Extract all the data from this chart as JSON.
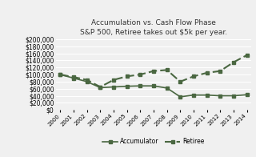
{
  "title_line1": "Accumulation vs. Cash Flow Phase",
  "title_line2": "S&P 500, Retiree takes out $5k per year.",
  "years": [
    2000,
    2001,
    2002,
    2003,
    2004,
    2005,
    2006,
    2007,
    2008,
    2009,
    2010,
    2011,
    2012,
    2013,
    2014
  ],
  "accumulator": [
    100000,
    90000,
    80000,
    63000,
    65000,
    67000,
    68000,
    68000,
    62000,
    37000,
    42000,
    42000,
    40000,
    40000,
    43000
  ],
  "retiree": [
    100000,
    93000,
    85000,
    65000,
    85000,
    95000,
    100000,
    110000,
    113000,
    80000,
    95000,
    105000,
    110000,
    135000,
    155000
  ],
  "line_color": "#4a6741",
  "background_color": "#f0f0f0",
  "ylim": [
    0,
    200000
  ],
  "ytick_step": 20000,
  "legend_labels": [
    "Accumulator",
    "Retiree"
  ]
}
